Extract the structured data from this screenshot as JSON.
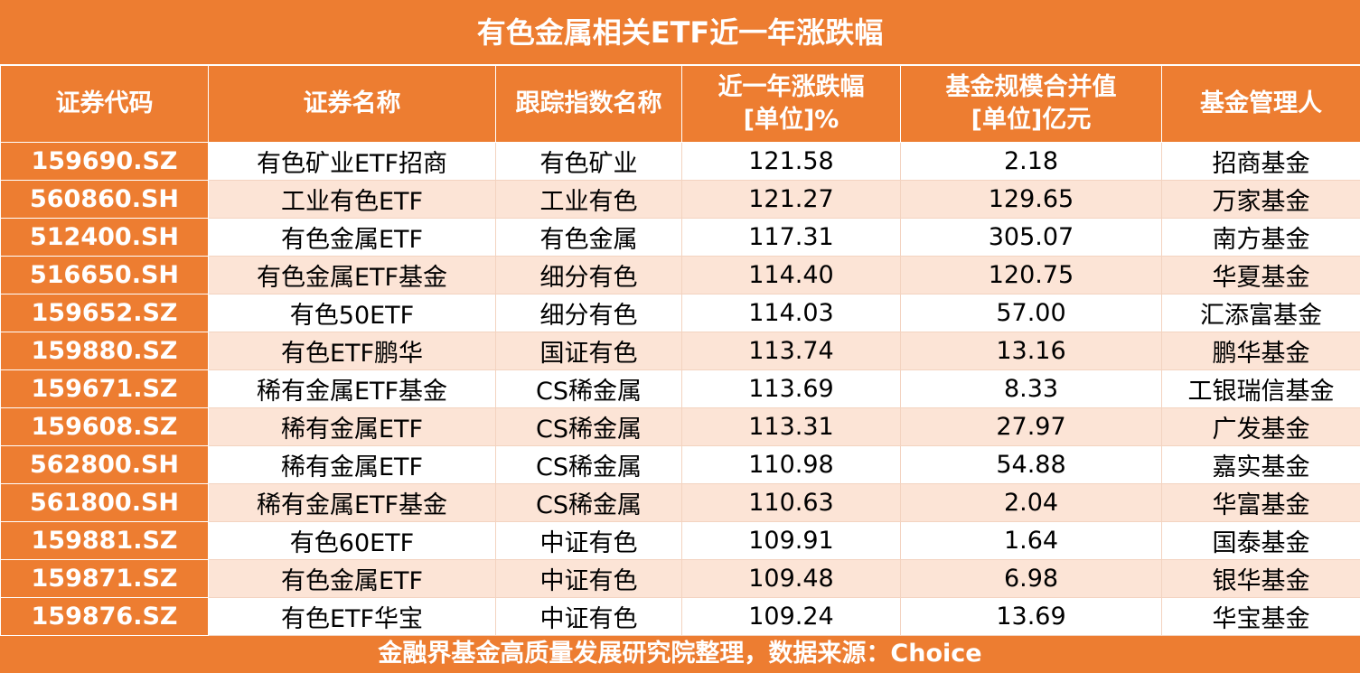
{
  "title": "有色金属相关ETF近一年涨跌幅",
  "headers": [
    "证券代码",
    "证券名称",
    "跟踪指数名称",
    "近一年涨跌幅\n[单位]%",
    "基金规模合并值\n[单位]亿元",
    "基金管理人"
  ],
  "rows": [
    [
      "159690.SZ",
      "有色矿业ETF招商",
      "有色矿业",
      "121.58",
      "2.18",
      "招商基金"
    ],
    [
      "560860.SH",
      "工业有色ETF",
      "工业有色",
      "121.27",
      "129.65",
      "万家基金"
    ],
    [
      "512400.SH",
      "有色金属ETF",
      "有色金属",
      "117.31",
      "305.07",
      "南方基金"
    ],
    [
      "516650.SH",
      "有色金属ETF基金",
      "细分有色",
      "114.40",
      "120.75",
      "华夏基金"
    ],
    [
      "159652.SZ",
      "有色50ETF",
      "细分有色",
      "114.03",
      "57.00",
      "汇添富基金"
    ],
    [
      "159880.SZ",
      "有色ETF鹏华",
      "国证有色",
      "113.74",
      "13.16",
      "鹏华基金"
    ],
    [
      "159671.SZ",
      "稀有金属ETF基金",
      "CS稀金属",
      "113.69",
      "8.33",
      "工银瑞信基金"
    ],
    [
      "159608.SZ",
      "稀有金属ETF",
      "CS稀金属",
      "113.31",
      "27.97",
      "广发基金"
    ],
    [
      "562800.SH",
      "稀有金属ETF",
      "CS稀金属",
      "110.98",
      "54.88",
      "嘉实基金"
    ],
    [
      "561800.SH",
      "稀有金属ETF基金",
      "CS稀金属",
      "110.63",
      "2.04",
      "华富基金"
    ],
    [
      "159881.SZ",
      "有色60ETF",
      "中证有色",
      "109.91",
      "1.64",
      "国泰基金"
    ],
    [
      "159871.SZ",
      "有色金属ETF",
      "中证有色",
      "109.48",
      "6.98",
      "银华基金"
    ],
    [
      "159876.SZ",
      "有色ETF华宝",
      "中证有色",
      "109.24",
      "13.69",
      "华宝基金"
    ]
  ],
  "footer": "金融界基金高质量发展研究院整理，数据来源：Choice",
  "colors": {
    "accent": "#ED7D31",
    "stripe": "#FCE4D6"
  }
}
